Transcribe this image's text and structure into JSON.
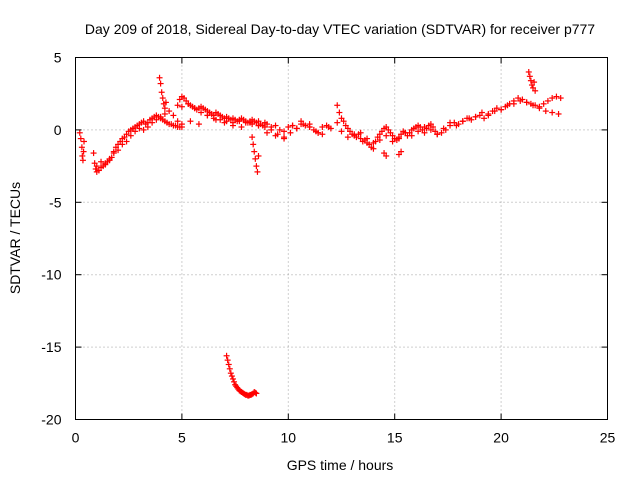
{
  "chart_data": {
    "type": "scatter",
    "title": "Day 209 of 2018, Sidereal Day-to-day VTEC variation (SDTVAR) for receiver p777",
    "xlabel": "GPS time / hours",
    "ylabel": "SDTVAR / TECUs",
    "xlim": [
      0,
      25
    ],
    "ylim": [
      -20,
      5
    ],
    "xticks": [
      0,
      5,
      10,
      15,
      20,
      25
    ],
    "yticks": [
      5,
      0,
      -5,
      -10,
      -15,
      -20
    ],
    "grid": true,
    "marker": "+",
    "color": "#ff0000",
    "series": [
      {
        "name": "SDTVAR",
        "x": [
          0.2,
          0.25,
          0.3,
          0.32,
          0.35,
          0.38,
          0.4,
          0.85,
          0.9,
          0.95,
          1.0,
          1.1,
          1.2,
          1.3,
          1.4,
          1.5,
          1.6,
          1.7,
          1.8,
          1.9,
          2.0,
          2.1,
          2.2,
          2.3,
          2.4,
          2.5,
          2.6,
          2.7,
          2.8,
          2.9,
          3.0,
          3.1,
          3.2,
          3.3,
          3.4,
          3.5,
          3.6,
          3.7,
          3.8,
          3.9,
          4.0,
          4.1,
          4.2,
          4.3,
          4.4,
          4.5,
          4.6,
          4.7,
          4.8,
          4.9,
          5.0,
          1.0,
          1.2,
          1.4,
          1.6,
          1.8,
          2.0,
          2.2,
          2.4,
          2.6,
          2.8,
          3.0,
          3.2,
          3.4,
          3.6,
          3.8,
          4.0,
          4.2,
          4.4,
          4.6,
          4.8,
          5.0,
          3.95,
          4.0,
          4.05,
          4.1,
          4.15,
          4.2,
          4.25,
          4.8,
          4.9,
          5.0,
          5.1,
          5.2,
          5.3,
          5.4,
          5.5,
          5.6,
          5.7,
          5.8,
          5.9,
          6.0,
          6.1,
          6.2,
          6.3,
          6.4,
          6.5,
          6.6,
          6.7,
          6.8,
          6.9,
          7.0,
          7.1,
          7.2,
          7.3,
          7.4,
          7.5,
          7.6,
          7.7,
          7.8,
          7.9,
          8.0,
          8.1,
          8.2,
          8.3,
          8.4,
          8.5,
          8.6,
          8.7,
          8.8,
          8.9,
          9.0,
          9.2,
          9.4,
          9.6,
          9.8,
          10.0,
          10.2,
          10.4,
          10.6,
          10.8,
          11.0,
          11.2,
          11.4,
          11.6,
          11.8,
          12.0,
          5.0,
          5.3,
          5.6,
          5.9,
          6.2,
          6.5,
          6.8,
          7.1,
          7.4,
          7.7,
          8.0,
          8.3,
          8.6,
          8.9,
          9.2,
          9.5,
          9.8,
          10.1,
          10.4,
          10.7,
          11.0,
          11.3,
          11.6,
          11.9,
          5.4,
          5.8,
          6.2,
          6.6,
          7.0,
          7.4,
          7.8,
          8.2,
          8.6,
          9.0,
          9.4,
          9.8,
          10.2,
          10.6,
          11.0,
          11.4,
          8.3,
          8.35,
          8.4,
          8.45,
          8.5,
          8.55,
          8.6,
          7.1,
          7.15,
          7.2,
          7.25,
          7.3,
          7.35,
          7.4,
          7.45,
          7.5,
          7.55,
          7.6,
          7.65,
          7.7,
          7.75,
          7.8,
          7.85,
          7.9,
          7.95,
          8.0,
          8.05,
          8.1,
          8.15,
          8.2,
          8.25,
          8.3,
          8.35,
          8.4,
          8.45,
          8.5,
          12.3,
          12.5,
          12.6,
          12.7,
          12.8,
          12.9,
          13.0,
          13.1,
          13.2,
          13.3,
          13.4,
          13.5,
          13.6,
          13.7,
          13.8,
          13.9,
          14.0,
          14.1,
          14.2,
          14.3,
          14.4,
          14.5,
          14.6,
          14.7,
          14.8,
          14.9,
          15.0,
          15.1,
          15.2,
          15.3,
          15.4,
          15.5,
          15.6,
          15.7,
          15.8,
          15.9,
          16.0,
          16.1,
          16.2,
          16.3,
          16.4,
          16.5,
          16.6,
          16.7,
          16.8,
          16.9,
          17.0,
          17.2,
          17.4,
          17.6,
          17.8,
          18.0,
          18.2,
          18.4,
          18.6,
          18.8,
          19.0,
          19.2,
          19.4,
          19.6,
          19.8,
          20.0,
          20.2,
          20.4,
          20.6,
          20.8,
          21.0,
          21.2,
          21.4,
          21.6,
          21.8,
          22.0,
          22.2,
          22.4,
          22.6,
          22.8,
          12.5,
          12.8,
          13.1,
          13.4,
          13.7,
          14.0,
          14.3,
          14.6,
          14.9,
          15.2,
          15.5,
          15.8,
          16.1,
          16.4,
          16.7,
          17.0,
          17.3,
          17.6,
          17.9,
          18.2,
          18.5,
          18.8,
          19.1,
          19.4,
          19.7,
          20.0,
          20.3,
          20.6,
          20.9,
          21.2,
          21.5,
          21.8,
          22.1,
          22.4,
          22.7,
          12.3,
          12.4,
          14.5,
          14.6,
          15.2,
          15.3,
          21.3,
          21.35,
          21.4,
          21.45,
          21.5,
          21.55,
          21.6
        ],
        "y": [
          -0.2,
          -0.6,
          -1.2,
          -1.8,
          -2.1,
          -1.5,
          -0.8,
          -1.6,
          -2.3,
          -2.7,
          -2.9,
          -2.8,
          -2.6,
          -2.5,
          -2.3,
          -2.2,
          -2.0,
          -1.9,
          -1.5,
          -1.2,
          -1.0,
          -0.8,
          -0.6,
          -0.5,
          -0.3,
          -0.1,
          0.0,
          0.1,
          0.2,
          0.3,
          0.4,
          0.5,
          0.6,
          0.4,
          0.5,
          0.7,
          0.8,
          0.9,
          1.0,
          0.9,
          0.8,
          0.7,
          0.6,
          0.5,
          0.4,
          0.4,
          0.3,
          0.3,
          0.2,
          0.2,
          0.2,
          -2.5,
          -2.2,
          -2.4,
          -2.1,
          -1.6,
          -1.4,
          -1.0,
          -0.8,
          -0.4,
          -0.1,
          0.1,
          0.0,
          0.2,
          0.5,
          0.7,
          0.9,
          1.1,
          1.3,
          1.0,
          0.6,
          0.4,
          3.6,
          3.2,
          2.6,
          2.2,
          1.8,
          1.5,
          1.9,
          1.7,
          2.1,
          2.3,
          2.2,
          2.0,
          1.8,
          1.7,
          1.6,
          1.5,
          1.4,
          1.5,
          1.6,
          1.5,
          1.4,
          1.3,
          1.2,
          1.1,
          1.0,
          1.2,
          1.1,
          1.0,
          0.9,
          0.8,
          0.9,
          0.8,
          0.7,
          0.8,
          0.7,
          0.6,
          0.7,
          0.8,
          0.7,
          0.6,
          0.5,
          0.6,
          0.7,
          0.6,
          0.5,
          0.6,
          0.4,
          0.3,
          0.5,
          0.4,
          0.2,
          0.3,
          0.0,
          -0.1,
          0.2,
          0.3,
          0.1,
          0.4,
          0.3,
          0.2,
          0.0,
          -0.2,
          0.2,
          0.3,
          0.1,
          1.6,
          1.8,
          1.5,
          1.2,
          1.0,
          0.8,
          0.7,
          0.6,
          0.5,
          0.6,
          0.5,
          0.4,
          0.3,
          0.2,
          0.0,
          -0.3,
          -0.5,
          -0.2,
          0.1,
          0.4,
          0.2,
          -0.1,
          -0.3,
          0.2,
          0.6,
          0.4,
          1.0,
          0.7,
          0.5,
          0.3,
          0.2,
          0.5,
          0.3,
          -0.2,
          -0.4,
          -0.6,
          0.3,
          0.6,
          0.4,
          -0.2,
          -0.5,
          -1.0,
          -1.5,
          -2.0,
          -2.5,
          -2.9,
          -1.8,
          -15.6,
          -15.9,
          -16.2,
          -16.5,
          -16.8,
          -17.0,
          -17.2,
          -17.4,
          -17.6,
          -17.7,
          -17.8,
          -17.9,
          -18.0,
          -18.05,
          -18.1,
          -18.15,
          -18.2,
          -18.25,
          -18.3,
          -18.3,
          -18.35,
          -18.35,
          -18.3,
          -18.3,
          -18.25,
          -18.2,
          -18.1,
          -18.15,
          -18.2,
          0.5,
          0.8,
          0.6,
          0.3,
          0.1,
          -0.1,
          -0.3,
          -0.4,
          -0.5,
          -0.3,
          -0.6,
          -0.8,
          -0.7,
          -0.9,
          -1.0,
          -1.2,
          -1.3,
          -0.8,
          -0.5,
          -0.3,
          -0.1,
          0.1,
          0.2,
          0.0,
          -0.2,
          -0.4,
          -0.6,
          -0.7,
          -0.5,
          -0.3,
          -0.1,
          -0.2,
          -0.4,
          -0.2,
          0.0,
          0.1,
          0.2,
          0.3,
          0.2,
          0.0,
          -0.2,
          0.1,
          0.3,
          0.4,
          0.2,
          -0.1,
          -0.3,
          -0.2,
          0.0,
          0.3,
          0.5,
          0.4,
          0.6,
          0.8,
          0.7,
          0.9,
          1.0,
          0.8,
          1.1,
          1.3,
          1.5,
          1.4,
          1.6,
          1.8,
          2.0,
          2.2,
          2.1,
          1.9,
          1.8,
          1.7,
          1.6,
          1.8,
          2.0,
          2.2,
          2.3,
          2.2,
          -0.1,
          -0.5,
          -0.3,
          -0.2,
          -0.6,
          -0.9,
          -0.7,
          -0.4,
          -0.8,
          -0.6,
          -0.2,
          -0.4,
          -0.1,
          0.2,
          0.0,
          -0.3,
          0.1,
          0.5,
          0.3,
          0.6,
          0.8,
          0.9,
          1.2,
          1.0,
          1.3,
          1.4,
          1.7,
          1.8,
          2.0,
          1.9,
          1.7,
          1.5,
          1.3,
          1.2,
          1.1,
          1.7,
          1.2,
          -1.6,
          -1.8,
          -1.7,
          -1.5,
          4.0,
          3.7,
          3.4,
          3.1,
          2.9,
          3.3,
          2.7
        ]
      }
    ]
  }
}
